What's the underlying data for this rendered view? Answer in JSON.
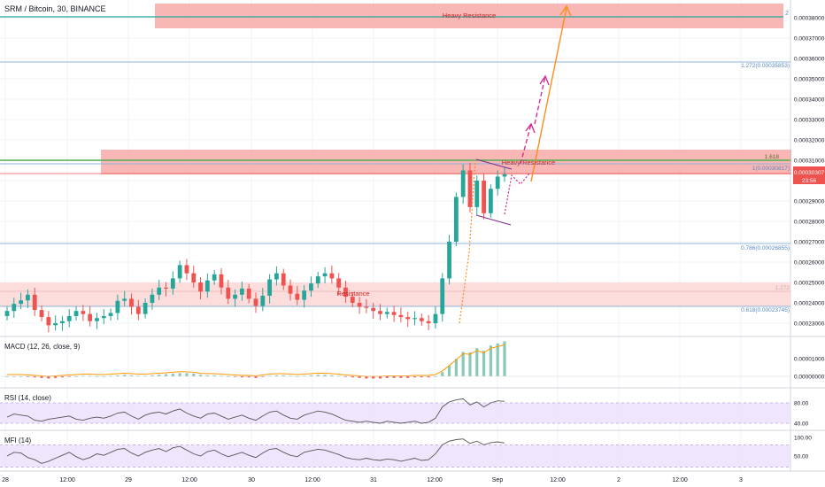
{
  "symbol_title": "SRM / Bitcoin, 30, BINANCE",
  "colors": {
    "up": "#26a69a",
    "down": "#ef5350",
    "zone": "#f7a9a8",
    "zone_light": "#fcd9d8",
    "fib": "#8fb3d9",
    "green_line": "#4caf50",
    "teal_line": "#26a69a",
    "macd_signal": "#ff9800",
    "indicator_line": "#555555",
    "rsi_band": "#e9dcfb",
    "arrow_orange": "#ff8c1a",
    "arrow_magenta": "#d6238c",
    "price_badge": "#ef5350"
  },
  "price_axis": {
    "ticks": [
      "0.00038000",
      "0.00037000",
      "0.00036000",
      "0.00035000",
      "0.00034000",
      "0.00033000",
      "0.00032000",
      "0.00031000",
      "0.00030000",
      "0.00029000",
      "0.00028000",
      "0.00027000",
      "0.00026000",
      "0.00025000",
      "0.00024000",
      "0.00023000"
    ],
    "current_price": "0.00030307",
    "countdown": "23:56",
    "alert_label": "2"
  },
  "time_axis": [
    "28",
    "12:00",
    "29",
    "12:00",
    "30",
    "12:00",
    "31",
    "12:00",
    "Sep",
    "12:00",
    "2",
    "12:00",
    "3"
  ],
  "annotations": {
    "heavy_resistance_top": "Heavy Resistance",
    "heavy_resistance_mid": "Heavy Resistance",
    "resistance": "Resistance",
    "fib_1272": "1.272(0.00035853)",
    "fib_1618": "1.618",
    "fib_1": "1(0.00030817)",
    "fib_0786": "0.786(0.00026855)",
    "fib_0618": "0.618(0.00023745)",
    "fib_1272_left": "1.272"
  },
  "macd": {
    "title": "MACD (12, 26, close, 9)",
    "ticks": [
      "0.00001000",
      "0.00000000"
    ]
  },
  "rsi": {
    "title": "RSI (14, close)",
    "ticks": [
      "80.00",
      "40.00"
    ]
  },
  "mfi": {
    "title": "MFI (14)",
    "ticks": [
      "100.00",
      "50.00"
    ]
  },
  "chart_data": {
    "type": "candlestick",
    "title": "SRM / Bitcoin, 30, BINANCE",
    "x_unit": "30-minute bars",
    "ylim": [
      0.000222,
      0.000389
    ],
    "key_levels": [
      {
        "label": "Heavy Resistance",
        "from": 0.0003755,
        "to": 0.000389
      },
      {
        "label": "Heavy Resistance",
        "from": 0.000303,
        "to": 0.000315
      },
      {
        "label": "Resistance",
        "from": 0.000236,
        "to": 0.000251
      },
      {
        "label": "1.272(0.00035853)",
        "value": 0.00035853
      },
      {
        "label": "1.618",
        "value": 0.00031
      },
      {
        "label": "1(0.00030817)",
        "value": 0.00030817
      },
      {
        "label": "0.786(0.00026855)",
        "value": 0.00026855
      },
      {
        "label": "0.618(0.00023745)",
        "value": 0.00023745
      }
    ],
    "close_series": [
      0.000236,
      0.0002395,
      0.0002412,
      0.000244,
      0.0002365,
      0.000233,
      0.000229,
      0.00023,
      0.000231,
      0.0002335,
      0.000236,
      0.0002345,
      0.000231,
      0.0002325,
      0.0002335,
      0.000235,
      0.000241,
      0.000242,
      0.000238,
      0.0002345,
      0.00024,
      0.000244,
      0.0002475,
      0.000247,
      0.000252,
      0.0002585,
      0.0002545,
      0.00025,
      0.0002455,
      0.000251,
      0.000254,
      0.0002475,
      0.000242,
      0.000244,
      0.000247,
      0.000242,
      0.0002385,
      0.0002435,
      0.0002515,
      0.0002545,
      0.0002485,
      0.0002445,
      0.0002415,
      0.000246,
      0.0002495,
      0.000253,
      0.0002545,
      0.000252,
      0.0002475,
      0.000243,
      0.00024,
      0.000238,
      0.0002375,
      0.000236,
      0.0002345,
      0.0002355,
      0.000234,
      0.000233,
      0.000232,
      0.0002325,
      0.000231,
      0.00023,
      0.0002345,
      0.000252,
      0.00027,
      0.000292,
      0.000305,
      0.000287,
      0.0003,
      0.000284,
      0.000296,
      0.000302,
      0.0003031
    ],
    "macd_hist": [
      0,
      0,
      0,
      -0.1,
      -0.2,
      -0.3,
      -0.4,
      -0.3,
      -0.2,
      -0.1,
      0,
      0.1,
      0.1,
      0,
      0,
      0.1,
      0.2,
      0.3,
      0.2,
      0.1,
      0.1,
      0.2,
      0.3,
      0.4,
      0.5,
      0.6,
      0.6,
      0.5,
      0.3,
      0.2,
      0.2,
      0.1,
      0,
      -0.1,
      -0.2,
      -0.2,
      -0.3,
      -0.1,
      0.1,
      0.2,
      0.2,
      0.1,
      0,
      0.1,
      0.2,
      0.3,
      0.3,
      0.2,
      0.1,
      -0.1,
      -0.2,
      -0.3,
      -0.4,
      -0.4,
      -0.4,
      -0.3,
      -0.3,
      -0.3,
      -0.3,
      -0.2,
      -0.2,
      -0.2,
      0,
      0.8,
      2.0,
      3.3,
      4.6,
      4.5,
      5.3,
      4.8,
      5.8,
      6.2,
      6.6
    ],
    "rsi_series": [
      52,
      58,
      56,
      54,
      46,
      44,
      48,
      50,
      52,
      54,
      48,
      46,
      50,
      52,
      50,
      54,
      60,
      62,
      54,
      48,
      56,
      60,
      62,
      58,
      64,
      68,
      60,
      54,
      50,
      58,
      60,
      54,
      48,
      52,
      56,
      50,
      46,
      54,
      62,
      64,
      56,
      50,
      48,
      56,
      60,
      64,
      62,
      58,
      52,
      46,
      44,
      42,
      44,
      42,
      40,
      44,
      42,
      40,
      42,
      44,
      40,
      42,
      50,
      72,
      82,
      86,
      88,
      76,
      82,
      72,
      80,
      84,
      83
    ],
    "mfi_series": [
      50,
      60,
      58,
      46,
      40,
      30,
      36,
      44,
      52,
      60,
      48,
      40,
      46,
      56,
      52,
      60,
      68,
      70,
      58,
      50,
      60,
      66,
      70,
      62,
      72,
      76,
      66,
      56,
      50,
      62,
      66,
      56,
      48,
      54,
      60,
      52,
      46,
      58,
      68,
      70,
      60,
      52,
      48,
      60,
      64,
      68,
      66,
      60,
      54,
      46,
      42,
      40,
      44,
      40,
      38,
      42,
      40,
      36,
      40,
      44,
      38,
      40,
      56,
      80,
      90,
      94,
      96,
      84,
      90,
      80,
      86,
      88,
      85
    ]
  }
}
